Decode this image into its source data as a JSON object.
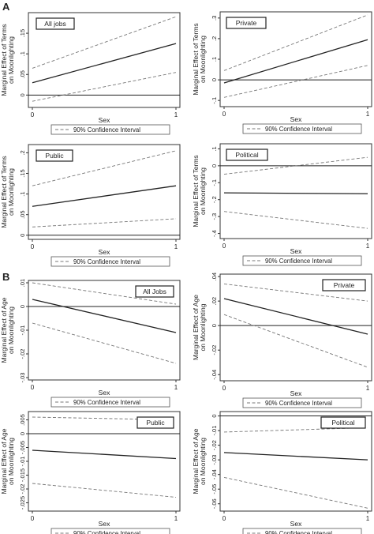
{
  "panels": [
    {
      "letter": "A"
    },
    {
      "letter": "B"
    }
  ],
  "legend_label": "90% Confidence Interval",
  "xlabel": "Sex",
  "chart_data": [
    {
      "type": "line",
      "group": "A",
      "title": "All jobs",
      "ylabel": [
        "Marginal Effect of Terms",
        "on Moonlighting"
      ],
      "xlabel": "Sex",
      "x": [
        0,
        1
      ],
      "xticks": [
        "0",
        "1"
      ],
      "ylim": [
        -0.03,
        0.2
      ],
      "yticks": [
        0,
        0.05,
        0.1,
        0.15
      ],
      "yticklabels": [
        "0",
        ".05",
        ".1",
        ".15"
      ],
      "zero_line": 0,
      "grid": false,
      "series": [
        {
          "role": "estimate",
          "values": [
            0.03,
            0.125
          ]
        },
        {
          "role": "ci",
          "values": [
            0.065,
            0.19
          ]
        },
        {
          "role": "ci",
          "values": [
            -0.015,
            0.055
          ]
        }
      ],
      "legend": "90% Confidence Interval"
    },
    {
      "type": "line",
      "group": "A",
      "title": "Private",
      "ylabel": [
        "Marginal Effect of Terms",
        "on Moonlighting"
      ],
      "xlabel": "Sex",
      "x": [
        0,
        1
      ],
      "xticks": [
        "0",
        "1"
      ],
      "ylim": [
        -0.13,
        0.33
      ],
      "yticks": [
        -0.1,
        0,
        0.1,
        0.2,
        0.3
      ],
      "yticklabels": [
        "-.1",
        "0",
        ".1",
        ".2",
        ".3"
      ],
      "zero_line": 0,
      "grid": false,
      "series": [
        {
          "role": "estimate",
          "values": [
            -0.015,
            0.195
          ]
        },
        {
          "role": "ci",
          "values": [
            0.045,
            0.315
          ]
        },
        {
          "role": "ci",
          "values": [
            -0.085,
            0.07
          ]
        }
      ],
      "legend": "90% Confidence Interval"
    },
    {
      "type": "line",
      "group": "A",
      "title": "Public",
      "ylabel": [
        "Marginal Effect of Terms",
        "on Moonlighting"
      ],
      "xlabel": "Sex",
      "x": [
        0,
        1
      ],
      "xticks": [
        "0",
        "1"
      ],
      "ylim": [
        -0.01,
        0.22
      ],
      "yticks": [
        0,
        0.05,
        0.1,
        0.15,
        0.2
      ],
      "yticklabels": [
        "0",
        ".05",
        ".1",
        ".15",
        ".2"
      ],
      "zero_line": 0,
      "grid": false,
      "series": [
        {
          "role": "estimate",
          "values": [
            0.07,
            0.12
          ]
        },
        {
          "role": "ci",
          "values": [
            0.12,
            0.205
          ]
        },
        {
          "role": "ci",
          "values": [
            0.02,
            0.04
          ]
        }
      ],
      "legend": "90% Confidence Interval"
    },
    {
      "type": "line",
      "group": "A",
      "title": "Political",
      "ylabel": [
        "Marginal Effect of Terms",
        "on Moonlighting"
      ],
      "xlabel": "Sex",
      "x": [
        0,
        1
      ],
      "xticks": [
        "0",
        "1"
      ],
      "ylim": [
        -0.43,
        0.13
      ],
      "yticks": [
        -0.4,
        -0.3,
        -0.2,
        -0.1,
        0,
        0.1
      ],
      "yticklabels": [
        "-.4",
        "-.3",
        "-.2",
        "-.1",
        "0",
        ".1"
      ],
      "zero_line": 0,
      "grid": false,
      "series": [
        {
          "role": "estimate",
          "values": [
            -0.16,
            -0.165
          ]
        },
        {
          "role": "ci",
          "values": [
            -0.05,
            0.05
          ]
        },
        {
          "role": "ci",
          "values": [
            -0.27,
            -0.37
          ]
        }
      ],
      "legend": "90% Confidence Interval"
    },
    {
      "type": "line",
      "group": "B",
      "title": "All Jobs",
      "ylabel": [
        "Marginal Effect of Age",
        "on Moonlighting"
      ],
      "xlabel": "Sex",
      "x": [
        0,
        1
      ],
      "xticks": [
        "0",
        "1"
      ],
      "ylim": [
        -0.031,
        0.011
      ],
      "yticks": [
        -0.03,
        -0.02,
        -0.01,
        0,
        0.01
      ],
      "yticklabels": [
        "-.03",
        "-.02",
        "-.01",
        "0",
        ".01"
      ],
      "zero_line": 0,
      "grid": false,
      "series": [
        {
          "role": "estimate",
          "values": [
            0.003,
            -0.011
          ]
        },
        {
          "role": "ci",
          "values": [
            0.01,
            0.001
          ]
        },
        {
          "role": "ci",
          "values": [
            -0.007,
            -0.024
          ]
        }
      ],
      "legend": "90% Confidence Interval"
    },
    {
      "type": "line",
      "group": "B",
      "title": "Private",
      "ylabel": [
        "Marginal Effect of Age",
        "on Moonlighting"
      ],
      "xlabel": "Sex",
      "x": [
        0,
        1
      ],
      "xticks": [
        "0",
        "1"
      ],
      "ylim": [
        -0.045,
        0.042
      ],
      "yticks": [
        -0.04,
        -0.02,
        0,
        0.02,
        0.04
      ],
      "yticklabels": [
        "-.04",
        "-.02",
        "0",
        ".02",
        ".04"
      ],
      "zero_line": 0,
      "grid": false,
      "series": [
        {
          "role": "estimate",
          "values": [
            0.022,
            -0.007
          ]
        },
        {
          "role": "ci",
          "values": [
            0.034,
            0.02
          ]
        },
        {
          "role": "ci",
          "values": [
            0.009,
            -0.034
          ]
        }
      ],
      "legend": "90% Confidence Interval"
    },
    {
      "type": "line",
      "group": "B",
      "title": "Public",
      "ylabel": [
        "Marginal Effect of Age",
        "on Moonlighting"
      ],
      "xlabel": "Sex",
      "x": [
        0,
        1
      ],
      "xticks": [
        "0",
        "1"
      ],
      "ylim": [
        -0.028,
        0.008
      ],
      "yticks": [
        -0.025,
        -0.02,
        -0.015,
        -0.01,
        -0.005,
        0,
        0.005
      ],
      "yticklabels": [
        "-.025",
        "-.02",
        "-.015",
        "-.01",
        "-.005",
        "0",
        ".005"
      ],
      "zero_line": 0,
      "grid": false,
      "series": [
        {
          "role": "estimate",
          "values": [
            -0.006,
            -0.009
          ]
        },
        {
          "role": "ci",
          "values": [
            0.006,
            0.005
          ]
        },
        {
          "role": "ci",
          "values": [
            -0.018,
            -0.023
          ]
        }
      ],
      "legend": "90% Confidence Interval"
    },
    {
      "type": "line",
      "group": "B",
      "title": "Political",
      "ylabel": [
        "Marginal Effect of Age",
        "on Moonlighting"
      ],
      "xlabel": "Sex",
      "x": [
        0,
        1
      ],
      "xticks": [
        "0",
        "1"
      ],
      "ylim": [
        -0.065,
        0.003
      ],
      "yticks": [
        -0.06,
        -0.05,
        -0.04,
        -0.03,
        -0.02,
        -0.01,
        0
      ],
      "yticklabels": [
        "-.06",
        "-.05",
        "-.04",
        "-.03",
        "-.02",
        "-.01",
        "0"
      ],
      "zero_line": 0,
      "grid": false,
      "series": [
        {
          "role": "estimate",
          "values": [
            -0.025,
            -0.03
          ]
        },
        {
          "role": "ci",
          "values": [
            -0.011,
            -0.008
          ]
        },
        {
          "role": "ci",
          "values": [
            -0.042,
            -0.063
          ]
        }
      ],
      "legend": "90% Confidence Interval"
    }
  ]
}
